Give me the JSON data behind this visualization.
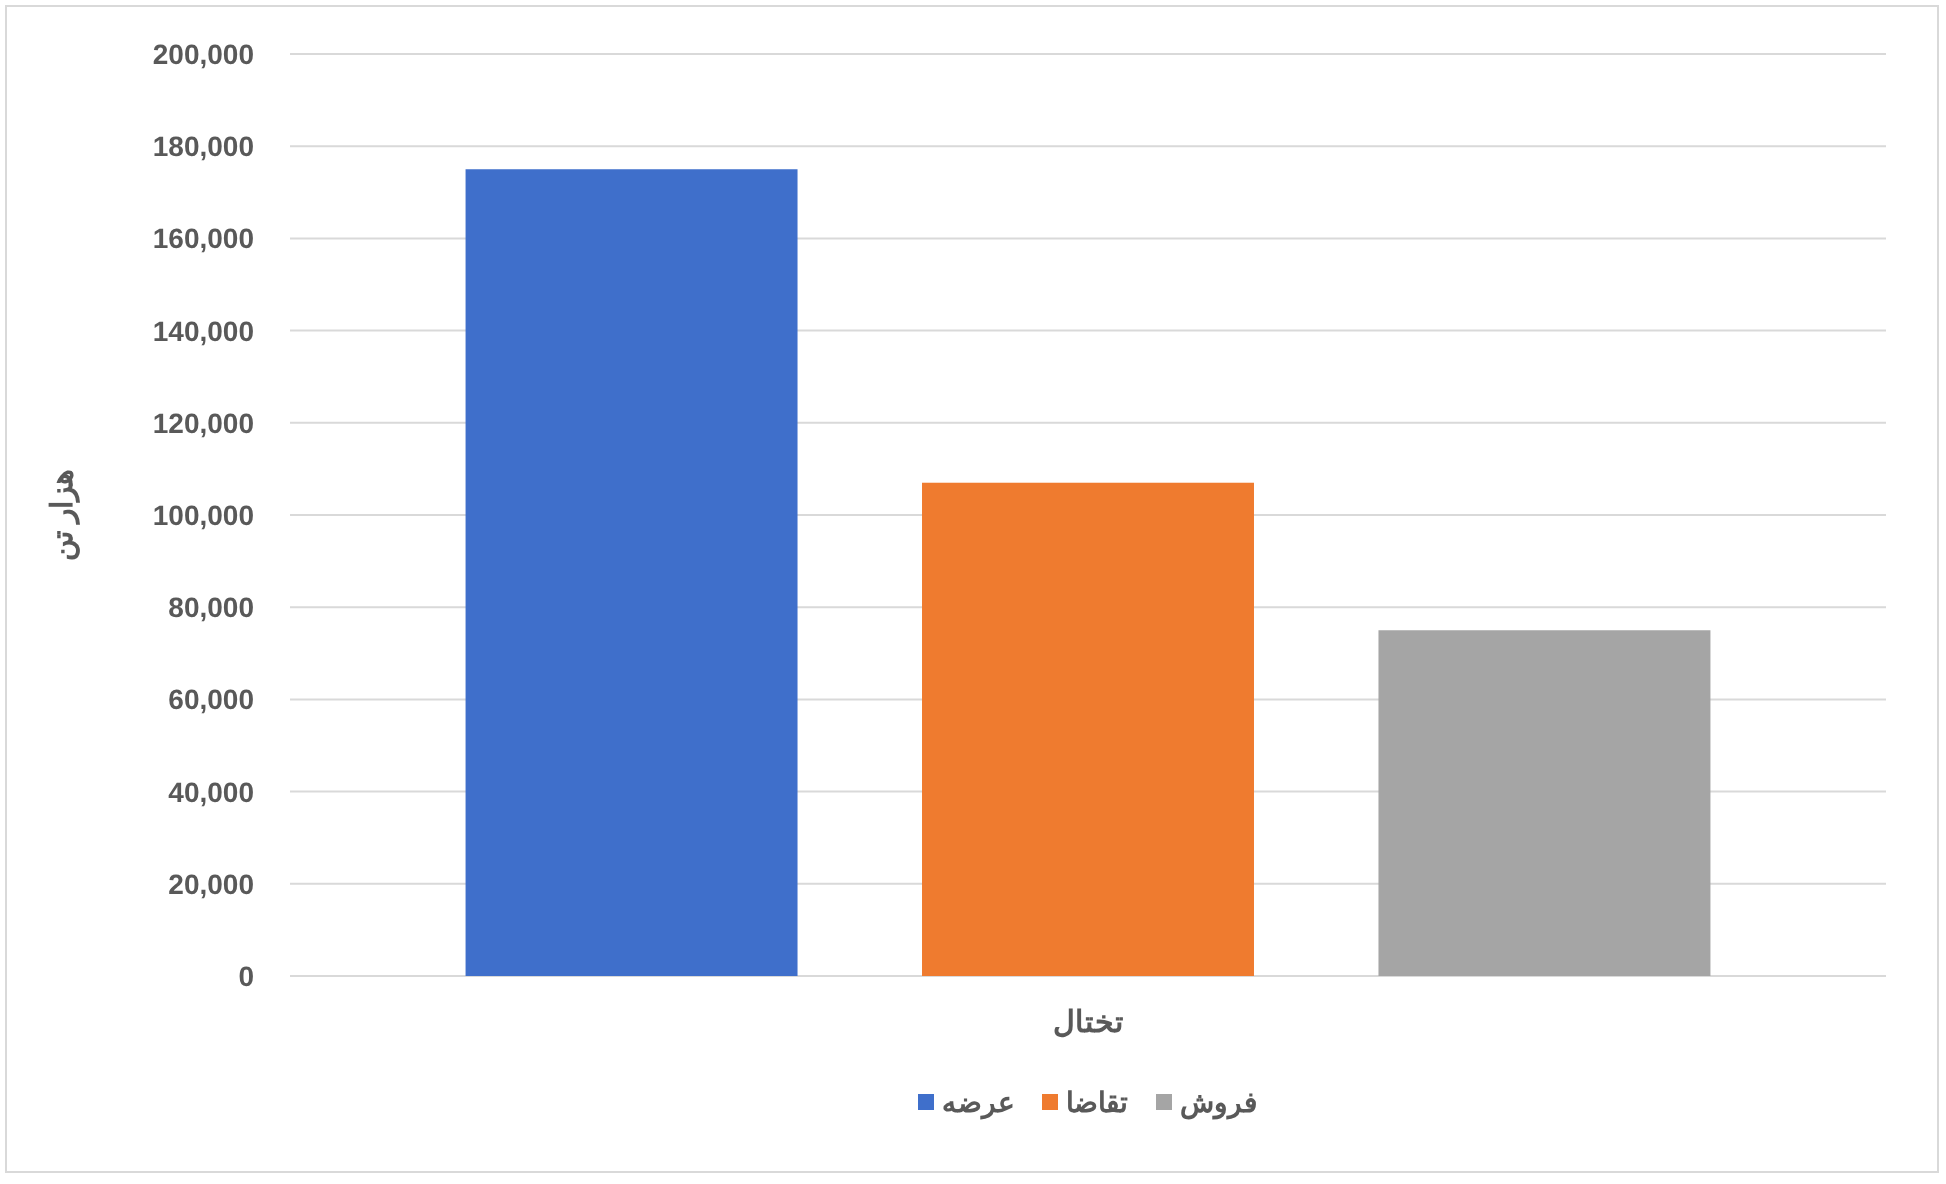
{
  "chart_data": {
    "type": "bar",
    "categories": [
      "تختال"
    ],
    "ylabel": "هزار تن",
    "series": [
      {
        "name": "عرضه",
        "color": "#3f6fcb",
        "values": [
          175000
        ]
      },
      {
        "name": "تقاضا",
        "color": "#ef7b2f",
        "values": [
          107000
        ]
      },
      {
        "name": "فروش",
        "color": "#a5a5a5",
        "values": [
          75000
        ]
      }
    ],
    "ylim": [
      0,
      200000
    ],
    "yticks": [
      0,
      {
        "value": 20000,
        "label": "20,000"
      },
      {
        "value": 40000,
        "label": "40,000"
      },
      {
        "value": 60000,
        "label": "60,000"
      },
      {
        "value": 80000,
        "label": "80,000"
      },
      {
        "value": 100000,
        "label": "100,000"
      },
      {
        "value": 120000,
        "label": "120,000"
      },
      {
        "value": 140000,
        "label": "140,000"
      },
      {
        "value": 160000,
        "label": "160,000"
      },
      {
        "value": 180000,
        "label": "180,000"
      },
      {
        "value": 200000,
        "label": "200,000"
      }
    ],
    "grid": "y",
    "legend": "bottom"
  }
}
